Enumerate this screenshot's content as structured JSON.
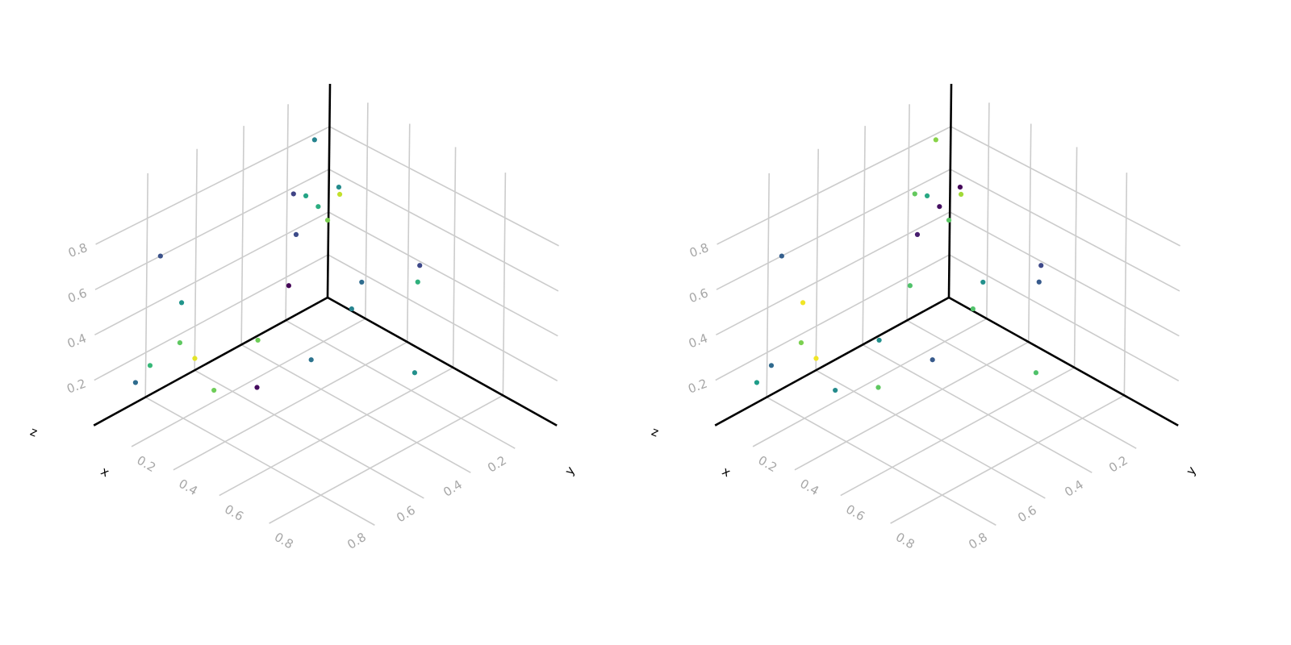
{
  "chart_data": [
    {
      "type": "scatter",
      "projection": "3d",
      "colormap": "viridis",
      "xlabel": "x",
      "ylabel": "y",
      "zlabel": "z",
      "xlim": [
        0,
        1
      ],
      "ylim": [
        0,
        1
      ],
      "zlim": [
        0,
        1
      ],
      "x_ticks": [
        "0.2",
        "0.4",
        "0.6",
        "0.8"
      ],
      "y_ticks": [
        "0.2",
        "0.4",
        "0.6",
        "0.8"
      ],
      "z_ticks": [
        "0.2",
        "0.4",
        "0.6",
        "0.8"
      ],
      "grid": true,
      "points": [
        {
          "x": 0.02,
          "y": 0.09,
          "z": 0.79,
          "c": 0.45
        },
        {
          "x": 0.13,
          "y": 0.07,
          "z": 0.61,
          "c": 0.48
        },
        {
          "x": 0.06,
          "y": 0.0,
          "z": 0.51,
          "c": 0.91
        },
        {
          "x": 0.04,
          "y": 0.04,
          "z": 0.4,
          "c": 0.8
        },
        {
          "x": 0.0,
          "y": 0.17,
          "z": 0.57,
          "c": 0.2
        },
        {
          "x": 0.01,
          "y": 0.12,
          "z": 0.54,
          "c": 0.58
        },
        {
          "x": 0.01,
          "y": 0.06,
          "z": 0.46,
          "c": 0.62
        },
        {
          "x": 0.47,
          "y": 0.02,
          "z": 0.4,
          "c": 0.22
        },
        {
          "x": 0.48,
          "y": 0.04,
          "z": 0.34,
          "c": 0.64
        },
        {
          "x": 0.23,
          "y": 0.05,
          "z": 0.21,
          "c": 0.35
        },
        {
          "x": 0.14,
          "y": 0.01,
          "z": 0.02,
          "c": 0.45
        },
        {
          "x": 0.06,
          "y": 0.79,
          "z": 0.65,
          "c": 0.25
        },
        {
          "x": 0.04,
          "y": 0.19,
          "z": 0.41,
          "c": 0.23
        },
        {
          "x": 0.07,
          "y": 0.71,
          "z": 0.4,
          "c": 0.52
        },
        {
          "x": 0.05,
          "y": 0.23,
          "z": 0.2,
          "c": 0.01
        },
        {
          "x": 0.01,
          "y": 0.67,
          "z": 0.17,
          "c": 0.75
        },
        {
          "x": 0.01,
          "y": 0.79,
          "z": 0.14,
          "c": 0.67
        },
        {
          "x": 0.18,
          "y": 0.74,
          "z": 0.22,
          "c": 0.96
        },
        {
          "x": 0.16,
          "y": 0.46,
          "z": 0.13,
          "c": 0.78
        },
        {
          "x": 0.0,
          "y": 0.84,
          "z": 0.09,
          "c": 0.35
        },
        {
          "x": 0.24,
          "y": 0.71,
          "z": 0.09,
          "c": 0.78
        },
        {
          "x": 0.33,
          "y": 0.61,
          "z": 0.09,
          "c": 0.03
        },
        {
          "x": 0.29,
          "y": 0.34,
          "z": 0.04,
          "c": 0.38
        },
        {
          "x": 0.64,
          "y": 0.23,
          "z": 0.12,
          "c": 0.5
        }
      ]
    },
    {
      "type": "scatter",
      "projection": "3d",
      "colormap": "viridis",
      "xlabel": "x",
      "ylabel": "y",
      "zlabel": "z",
      "xlim": [
        0,
        1
      ],
      "ylim": [
        0,
        1
      ],
      "zlim": [
        0,
        1
      ],
      "x_ticks": [
        "0.2",
        "0.4",
        "0.6",
        "0.8"
      ],
      "y_ticks": [
        "0.2",
        "0.4",
        "0.6",
        "0.8"
      ],
      "z_ticks": [
        "0.2",
        "0.4",
        "0.6",
        "0.8"
      ],
      "grid": true,
      "points": [
        {
          "x": 0.02,
          "y": 0.09,
          "z": 0.79,
          "c": 0.82
        },
        {
          "x": 0.13,
          "y": 0.07,
          "z": 0.61,
          "c": 0.02
        },
        {
          "x": 0.06,
          "y": 0.0,
          "z": 0.51,
          "c": 0.86
        },
        {
          "x": 0.04,
          "y": 0.04,
          "z": 0.4,
          "c": 0.74
        },
        {
          "x": 0.0,
          "y": 0.17,
          "z": 0.57,
          "c": 0.76
        },
        {
          "x": 0.01,
          "y": 0.12,
          "z": 0.54,
          "c": 0.6
        },
        {
          "x": 0.01,
          "y": 0.06,
          "z": 0.46,
          "c": 0.04
        },
        {
          "x": 0.47,
          "y": 0.02,
          "z": 0.4,
          "c": 0.22
        },
        {
          "x": 0.48,
          "y": 0.04,
          "z": 0.34,
          "c": 0.28
        },
        {
          "x": 0.23,
          "y": 0.05,
          "z": 0.21,
          "c": 0.5
        },
        {
          "x": 0.14,
          "y": 0.01,
          "z": 0.02,
          "c": 0.72
        },
        {
          "x": 0.06,
          "y": 0.79,
          "z": 0.65,
          "c": 0.3
        },
        {
          "x": 0.04,
          "y": 0.19,
          "z": 0.41,
          "c": 0.08
        },
        {
          "x": 0.07,
          "y": 0.71,
          "z": 0.4,
          "c": 0.98
        },
        {
          "x": 0.05,
          "y": 0.23,
          "z": 0.2,
          "c": 0.72
        },
        {
          "x": 0.01,
          "y": 0.67,
          "z": 0.17,
          "c": 0.8
        },
        {
          "x": 0.01,
          "y": 0.79,
          "z": 0.14,
          "c": 0.34
        },
        {
          "x": 0.18,
          "y": 0.74,
          "z": 0.22,
          "c": 0.98
        },
        {
          "x": 0.16,
          "y": 0.46,
          "z": 0.13,
          "c": 0.5
        },
        {
          "x": 0.0,
          "y": 0.84,
          "z": 0.09,
          "c": 0.55
        },
        {
          "x": 0.24,
          "y": 0.71,
          "z": 0.09,
          "c": 0.48
        },
        {
          "x": 0.33,
          "y": 0.61,
          "z": 0.09,
          "c": 0.75
        },
        {
          "x": 0.29,
          "y": 0.34,
          "z": 0.04,
          "c": 0.28
        },
        {
          "x": 0.64,
          "y": 0.23,
          "z": 0.12,
          "c": 0.72
        }
      ]
    }
  ]
}
